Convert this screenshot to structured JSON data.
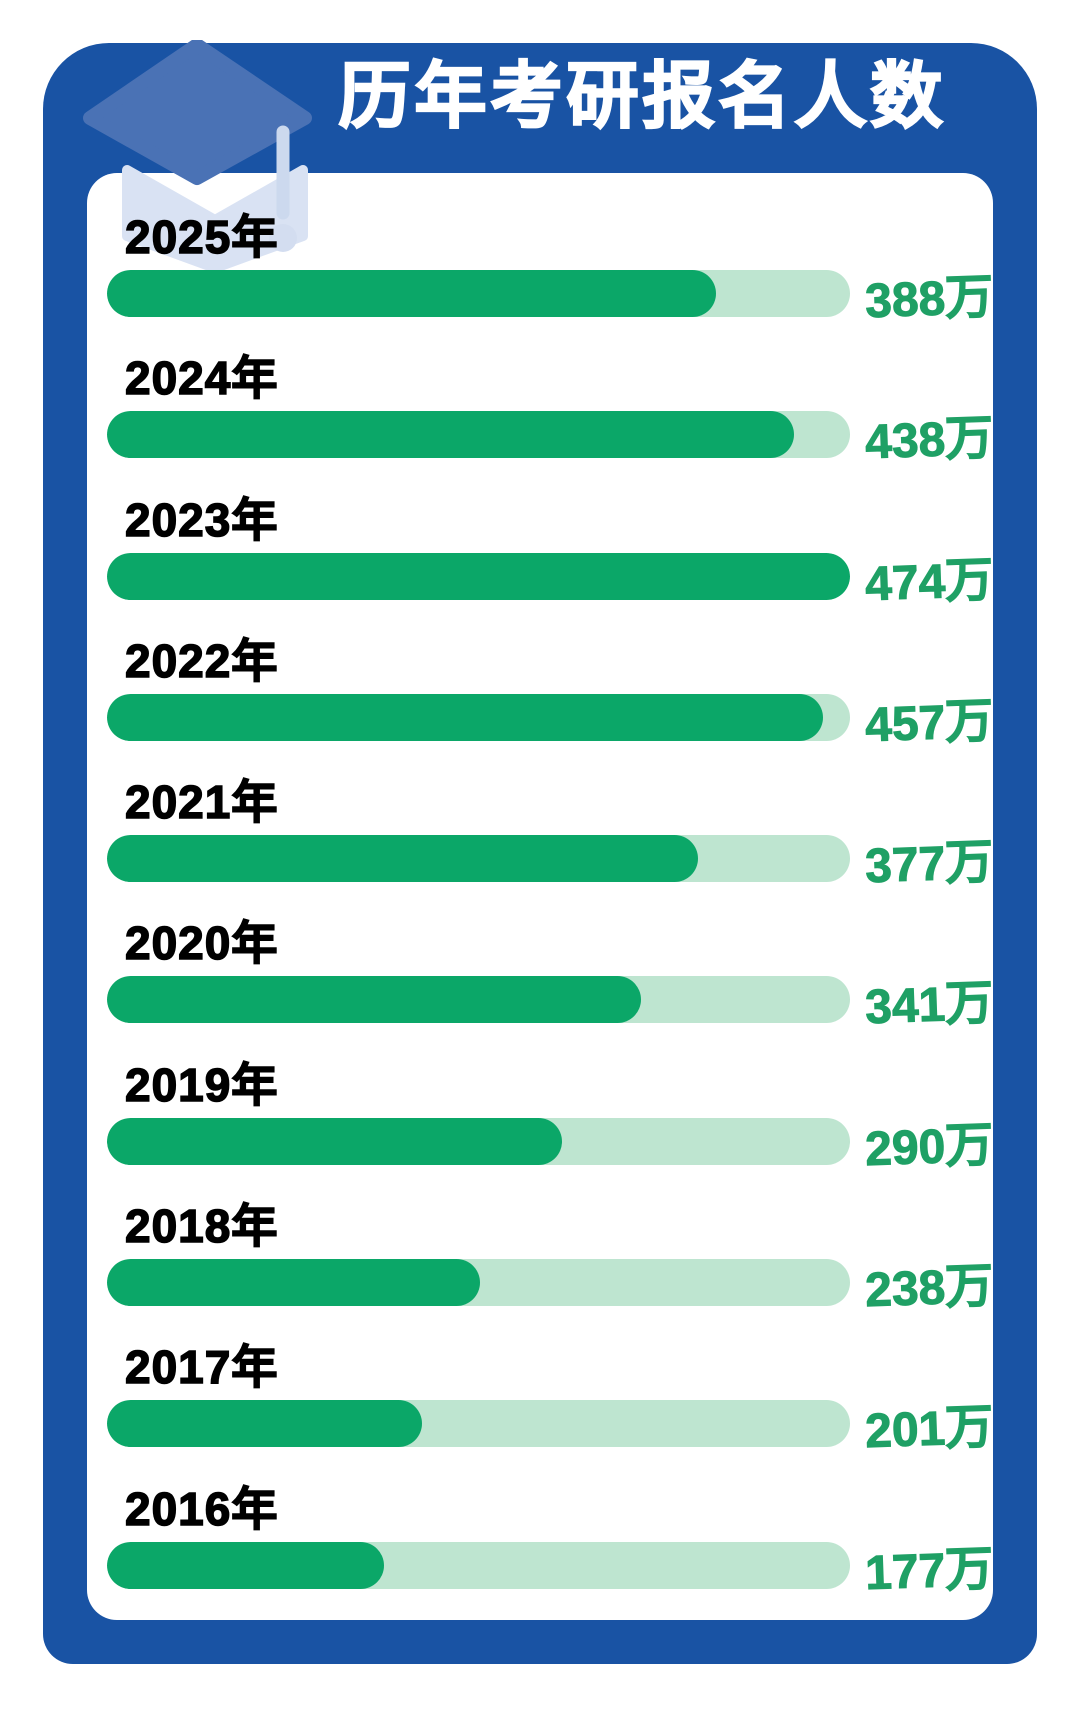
{
  "title": "历年考研报名人数",
  "chart_data": {
    "type": "bar",
    "orientation": "horizontal",
    "title": "历年考研报名人数",
    "categories": [
      "2025年",
      "2024年",
      "2023年",
      "2022年",
      "2021年",
      "2020年",
      "2019年",
      "2018年",
      "2017年",
      "2016年"
    ],
    "values": [
      388,
      438,
      474,
      457,
      377,
      341,
      290,
      238,
      201,
      177
    ],
    "value_labels": [
      "388万",
      "438万",
      "474万",
      "457万",
      "377万",
      "341万",
      "290万",
      "238万",
      "201万",
      "177万"
    ],
    "unit": "万",
    "max_value": 474,
    "xlim": [
      0,
      474
    ],
    "grid": false,
    "legend": false
  },
  "icons": {
    "graduation_cap": "graduation-cap-icon"
  },
  "colors": {
    "card_blue": "#1953a4",
    "card_white": "#ffffff",
    "bar_fill": "#0ba768",
    "bar_track": "#bee5d0",
    "value_text": "#1fa065",
    "year_text": "#000000",
    "title_text": "#ffffff",
    "cap_board": "#4a72b5",
    "cap_body": "#d9e2f3",
    "cap_tassel": "#ccd9ee"
  }
}
